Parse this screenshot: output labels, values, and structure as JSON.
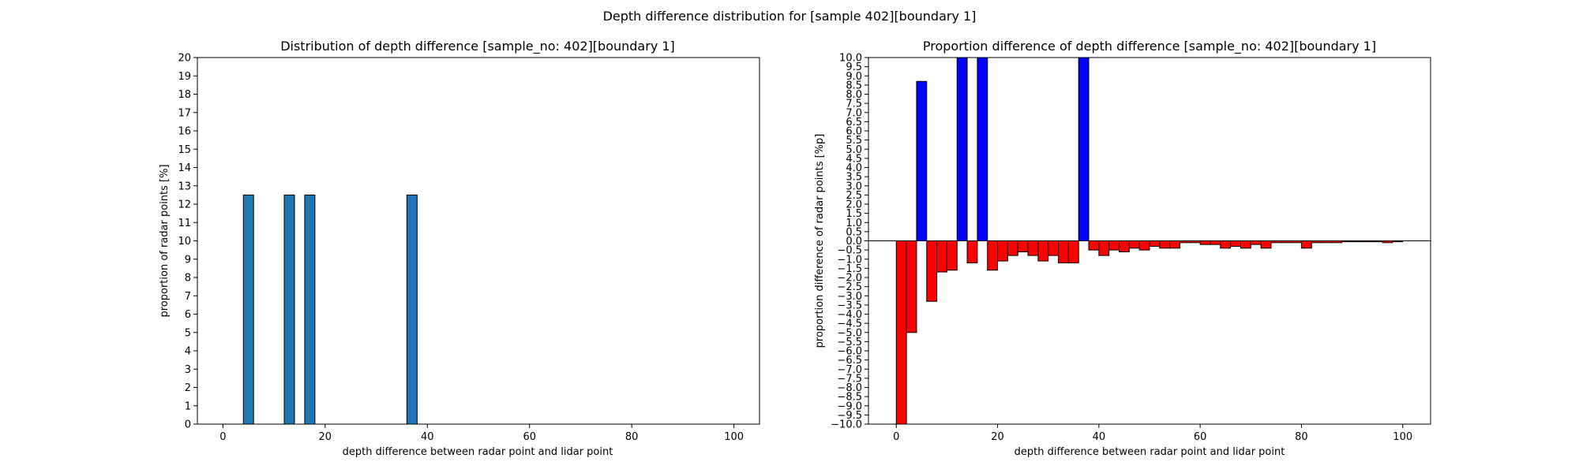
{
  "figure": {
    "suptitle": "Depth difference distribution for [sample 402][boundary 1]"
  },
  "chart_data": [
    {
      "type": "bar",
      "title": "Distribution of depth difference [sample_no: 402][boundary 1]",
      "xlabel": "depth difference between radar point and lidar point",
      "ylabel": "proportion of radar points [%]",
      "xlim": [
        -5,
        105
      ],
      "ylim": [
        0,
        20
      ],
      "x_ticks": [
        0,
        20,
        40,
        60,
        80,
        100
      ],
      "y_ticks": [
        0,
        1,
        2,
        3,
        4,
        5,
        6,
        7,
        8,
        9,
        10,
        11,
        12,
        13,
        14,
        15,
        16,
        17,
        18,
        19,
        20
      ],
      "bar_width": 2,
      "colors": {
        "bar": "#1f77b4",
        "edge": "#000000"
      },
      "series": [
        {
          "x": [
            5,
            13,
            17,
            37
          ],
          "values": [
            12.5,
            12.5,
            12.5,
            12.5
          ]
        }
      ]
    },
    {
      "type": "bar",
      "title": "Proportion difference of depth difference [sample_no: 402][boundary 1]",
      "xlabel": "depth difference between radar point and lidar point",
      "ylabel": "proportion difference of radar points [%p]",
      "xlim": [
        -5.5,
        105.5
      ],
      "ylim": [
        -10,
        10
      ],
      "x_ticks": [
        0,
        20,
        40,
        60,
        80,
        100
      ],
      "y_ticks": [
        -10.0,
        -9.5,
        -9.0,
        -8.5,
        -8.0,
        -7.5,
        -7.0,
        -6.5,
        -6.0,
        -5.5,
        -5.0,
        -4.5,
        -4.0,
        -3.5,
        -3.0,
        -2.5,
        -2.0,
        -1.5,
        -1.0,
        -0.5,
        0.0,
        0.5,
        1.0,
        1.5,
        2.0,
        2.5,
        3.0,
        3.5,
        4.0,
        4.5,
        5.0,
        5.5,
        6.0,
        6.5,
        7.0,
        7.5,
        8.0,
        8.5,
        9.0,
        9.5,
        10.0
      ],
      "bar_width": 2,
      "colors": {
        "positive": "#0000ff",
        "negative": "#ff0000",
        "edge": "#000000"
      },
      "series": [
        {
          "x": [
            1,
            3,
            5,
            7,
            9,
            11,
            13,
            15,
            17,
            19,
            21,
            23,
            25,
            27,
            29,
            31,
            33,
            35,
            37,
            39,
            41,
            43,
            45,
            47,
            49,
            51,
            53,
            55,
            57,
            59,
            61,
            63,
            65,
            67,
            69,
            71,
            73,
            75,
            77,
            79,
            81,
            83,
            85,
            87,
            89,
            91,
            93,
            95,
            97,
            99
          ],
          "values": [
            -10,
            -5,
            8.7,
            -3.3,
            -1.7,
            -1.6,
            10,
            -1.2,
            10,
            -1.6,
            -1.1,
            -0.8,
            -0.6,
            -0.8,
            -1.1,
            -0.8,
            -1.2,
            -1.2,
            10,
            -0.5,
            -0.8,
            -0.5,
            -0.6,
            -0.4,
            -0.5,
            -0.3,
            -0.4,
            -0.4,
            -0.1,
            -0.1,
            -0.2,
            -0.2,
            -0.4,
            -0.3,
            -0.4,
            -0.2,
            -0.4,
            -0.1,
            -0.1,
            -0.1,
            -0.4,
            -0.1,
            -0.1,
            -0.1,
            -0.05,
            -0.05,
            -0.05,
            -0.05,
            -0.1,
            -0.05
          ]
        }
      ]
    }
  ]
}
